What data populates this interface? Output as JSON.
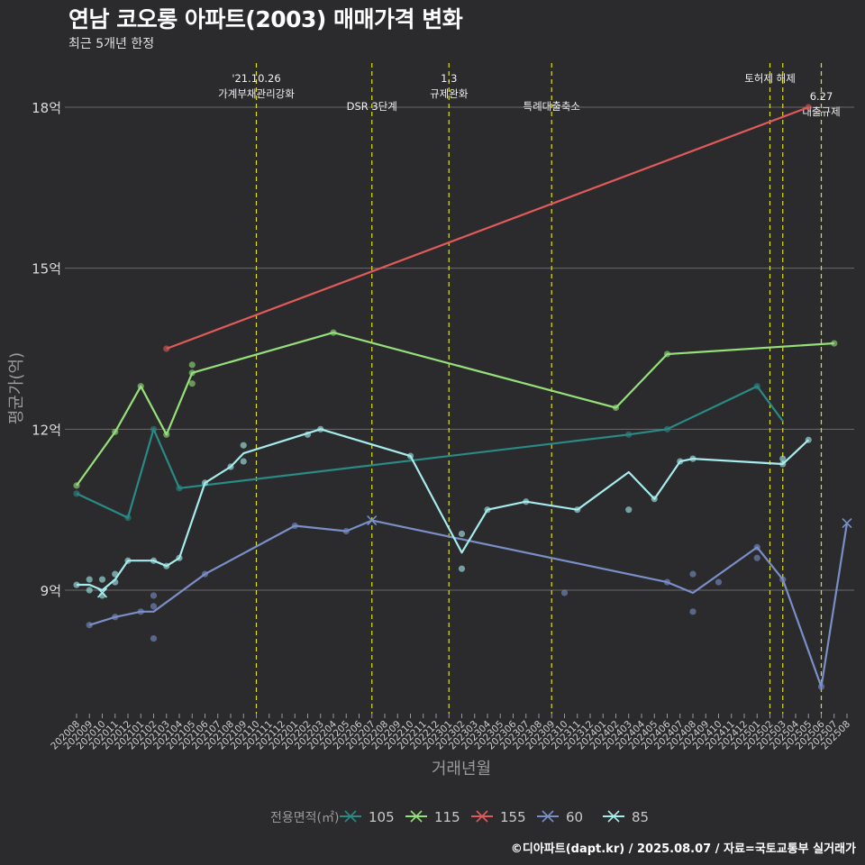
{
  "header": {
    "title": "연남 코오롱 아파트(2003) 매매가격 변화",
    "subtitle": "최근 5개년 한정"
  },
  "caption": "©디아파트(dapt.kr) / 2025.08.07 / 자료=국토교통부 실거래가",
  "chart_data": {
    "type": "line",
    "xlabel": "거래년월",
    "ylabel": "평균가(억)",
    "ylim": [
      6.5,
      19
    ],
    "yticks": [
      {
        "value": 9,
        "label": "9억"
      },
      {
        "value": 12,
        "label": "12억"
      },
      {
        "value": 15,
        "label": "15억"
      },
      {
        "value": 18,
        "label": "18억"
      }
    ],
    "categories": [
      "202008",
      "202009",
      "202010",
      "202011",
      "202012",
      "202101",
      "202102",
      "202103",
      "202104",
      "202105",
      "202106",
      "202107",
      "202108",
      "202109",
      "202110",
      "202111",
      "202112",
      "202201",
      "202202",
      "202203",
      "202204",
      "202205",
      "202206",
      "202207",
      "202208",
      "202209",
      "202210",
      "202211",
      "202212",
      "202301",
      "202302",
      "202303",
      "202304",
      "202305",
      "202306",
      "202307",
      "202308",
      "202309",
      "202310",
      "202311",
      "202312",
      "202401",
      "202402",
      "202403",
      "202404",
      "202405",
      "202406",
      "202407",
      "202408",
      "202409",
      "202410",
      "202411",
      "202412",
      "202501",
      "202502",
      "202503",
      "202504",
      "202505",
      "202506",
      "202507",
      "202508"
    ],
    "legend": {
      "title": "전용면적(㎡)",
      "position": "bottom"
    },
    "grid": true,
    "series": [
      {
        "name": "105",
        "color": "#2a8a86",
        "line": [
          [
            "202008",
            10.8
          ],
          [
            "202012",
            10.35
          ],
          [
            "202102",
            12.0
          ],
          [
            "202104",
            10.9
          ],
          [
            "202403",
            11.9
          ],
          [
            "202406",
            12.0
          ],
          [
            "202501",
            12.8
          ],
          [
            "202503",
            12.15
          ]
        ],
        "points": [
          [
            "202008",
            10.8
          ],
          [
            "202012",
            10.35
          ],
          [
            "202102",
            12.0
          ],
          [
            "202104",
            10.9
          ],
          [
            "202403",
            11.9
          ],
          [
            "202406",
            12.0
          ],
          [
            "202501",
            12.8
          ]
        ]
      },
      {
        "name": "115",
        "color": "#96e07a",
        "line": [
          [
            "202008",
            10.95
          ],
          [
            "202011",
            11.95
          ],
          [
            "202101",
            12.8
          ],
          [
            "202103",
            11.9
          ],
          [
            "202105",
            13.05
          ],
          [
            "202204",
            13.8
          ],
          [
            "202402",
            12.4
          ],
          [
            "202406",
            13.4
          ],
          [
            "202507",
            13.6
          ]
        ],
        "points": [
          [
            "202008",
            10.95
          ],
          [
            "202011",
            11.95
          ],
          [
            "202101",
            12.8
          ],
          [
            "202103",
            11.9
          ],
          [
            "202105",
            13.05
          ],
          [
            "202105",
            13.2
          ],
          [
            "202105",
            12.85
          ],
          [
            "202204",
            13.8
          ],
          [
            "202402",
            12.4
          ],
          [
            "202406",
            13.4
          ],
          [
            "202507",
            13.6
          ]
        ]
      },
      {
        "name": "155",
        "color": "#e05a5a",
        "line": [
          [
            "202103",
            13.5
          ],
          [
            "202505",
            18.0
          ]
        ],
        "points": [
          [
            "202103",
            13.5
          ],
          [
            "202505",
            18.0
          ]
        ]
      },
      {
        "name": "60",
        "color": "#7a8fc8",
        "line": [
          [
            "202009",
            8.35
          ],
          [
            "202011",
            8.5
          ],
          [
            "202101",
            8.6
          ],
          [
            "202102",
            8.6
          ],
          [
            "202106",
            9.3
          ],
          [
            "202201",
            10.2
          ],
          [
            "202205",
            10.1
          ],
          [
            "202207",
            10.3
          ],
          [
            "202406",
            9.15
          ],
          [
            "202408",
            8.95
          ],
          [
            "202501",
            9.8
          ],
          [
            "202503",
            9.2
          ],
          [
            "202506",
            7.2
          ],
          [
            "202508",
            10.25
          ]
        ],
        "points": [
          [
            "202009",
            8.35
          ],
          [
            "202011",
            8.5
          ],
          [
            "202101",
            8.6
          ],
          [
            "202102",
            8.9
          ],
          [
            "202102",
            8.7
          ],
          [
            "202102",
            8.1
          ],
          [
            "202106",
            9.3
          ],
          [
            "202201",
            10.2
          ],
          [
            "202205",
            10.1
          ],
          [
            "202310",
            8.95
          ],
          [
            "202406",
            9.15
          ],
          [
            "202408",
            8.6
          ],
          [
            "202408",
            9.3
          ],
          [
            "202410",
            9.15
          ],
          [
            "202501",
            9.6
          ],
          [
            "202501",
            9.8
          ],
          [
            "202503",
            9.2
          ],
          [
            "202506",
            7.2
          ]
        ],
        "xmarks": [
          [
            "202207",
            10.3
          ],
          [
            "202508",
            10.25
          ]
        ]
      },
      {
        "name": "85",
        "color": "#a6ecec",
        "line": [
          [
            "202008",
            9.1
          ],
          [
            "202009",
            9.1
          ],
          [
            "202010",
            9.0
          ],
          [
            "202011",
            9.2
          ],
          [
            "202012",
            9.55
          ],
          [
            "202102",
            9.55
          ],
          [
            "202103",
            9.45
          ],
          [
            "202104",
            9.6
          ],
          [
            "202106",
            11.0
          ],
          [
            "202108",
            11.3
          ],
          [
            "202109",
            11.55
          ],
          [
            "202203",
            12.0
          ],
          [
            "202210",
            11.5
          ],
          [
            "202302",
            9.7
          ],
          [
            "202304",
            10.5
          ],
          [
            "202307",
            10.65
          ],
          [
            "202311",
            10.5
          ],
          [
            "202403",
            11.2
          ],
          [
            "202405",
            10.7
          ],
          [
            "202407",
            11.4
          ],
          [
            "202408",
            11.45
          ],
          [
            "202503",
            11.35
          ],
          [
            "202505",
            11.8
          ]
        ],
        "points": [
          [
            "202008",
            9.1
          ],
          [
            "202009",
            9.2
          ],
          [
            "202009",
            9.0
          ],
          [
            "202010",
            9.2
          ],
          [
            "202010",
            8.9
          ],
          [
            "202011",
            9.3
          ],
          [
            "202011",
            9.15
          ],
          [
            "202012",
            9.55
          ],
          [
            "202102",
            9.55
          ],
          [
            "202103",
            9.45
          ],
          [
            "202104",
            9.6
          ],
          [
            "202106",
            11.0
          ],
          [
            "202108",
            11.3
          ],
          [
            "202109",
            11.4
          ],
          [
            "202109",
            11.7
          ],
          [
            "202202",
            11.9
          ],
          [
            "202203",
            12.0
          ],
          [
            "202210",
            11.5
          ],
          [
            "202302",
            10.05
          ],
          [
            "202302",
            9.4
          ],
          [
            "202304",
            10.5
          ],
          [
            "202307",
            10.65
          ],
          [
            "202311",
            10.5
          ],
          [
            "202403",
            10.5
          ],
          [
            "202405",
            10.7
          ],
          [
            "202407",
            11.4
          ],
          [
            "202408",
            11.45
          ],
          [
            "202503",
            11.35
          ],
          [
            "202503",
            11.45
          ],
          [
            "202505",
            11.8
          ]
        ],
        "xmarks": [
          [
            "202010",
            8.95
          ]
        ]
      }
    ],
    "events": [
      {
        "x": "202110",
        "label": "'21.10.26\n가계부채관리강화",
        "row": 0
      },
      {
        "x": "202207",
        "label": "DSR 3단계",
        "row": 1
      },
      {
        "x": "202301",
        "label": "1.3\n규제완화",
        "row": 0
      },
      {
        "x": "202309",
        "label": "특례대출축소",
        "row": 1
      },
      {
        "x": "202502",
        "label": "토허제 해제",
        "row": 0
      },
      {
        "x": "202503",
        "label": "",
        "row": 0
      },
      {
        "x": "202506",
        "label": "6.27\n대출규제",
        "row": 2
      }
    ]
  }
}
